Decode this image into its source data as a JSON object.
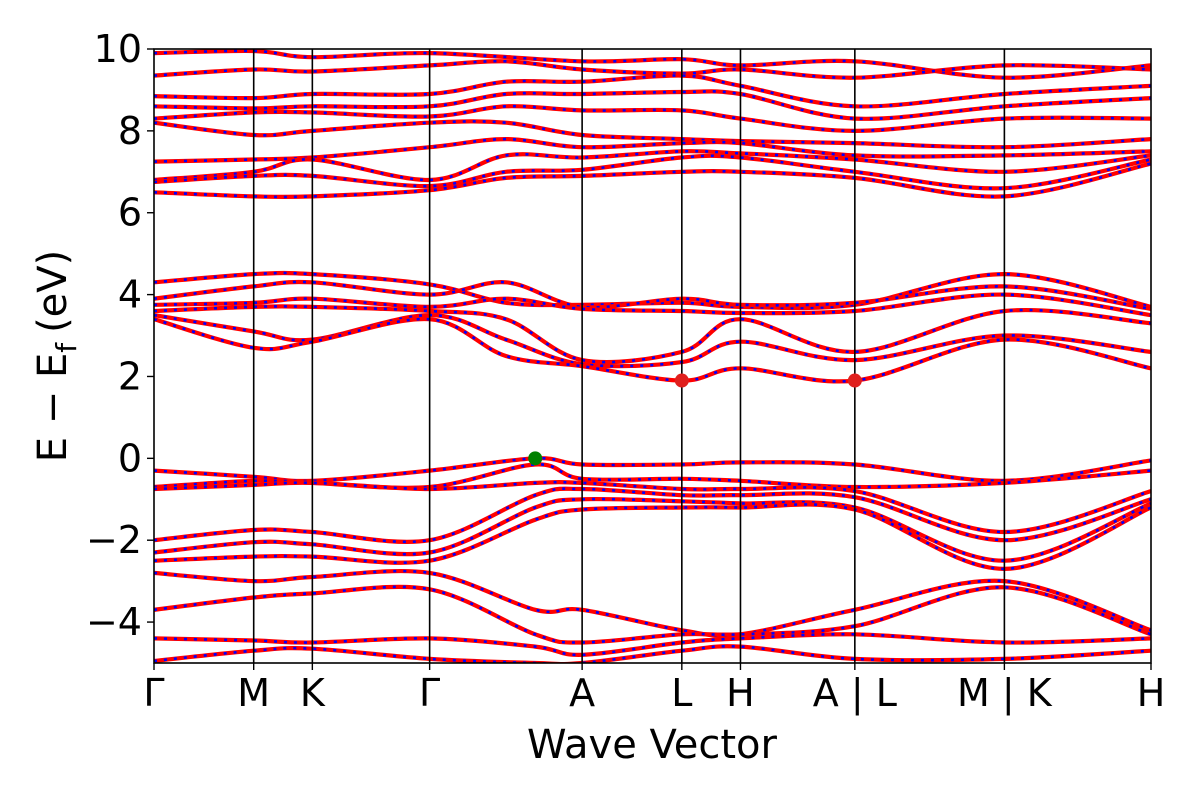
{
  "chart_data": {
    "type": "line",
    "title": "",
    "xlabel": "Wave Vector",
    "ylabel_main": "E − E",
    "ylabel_sub": "f",
    "ylabel_unit": "(eV)",
    "ylim": [
      -5,
      10
    ],
    "yticks": [
      {
        "value": -4,
        "label": "−4"
      },
      {
        "value": -2,
        "label": "−2"
      },
      {
        "value": 0,
        "label": "0"
      },
      {
        "value": 2,
        "label": "2"
      },
      {
        "value": 4,
        "label": "4"
      },
      {
        "value": 6,
        "label": "6"
      },
      {
        "value": 8,
        "label": "8"
      },
      {
        "value": 10,
        "label": "10"
      }
    ],
    "xlim": [
      0,
      17
    ],
    "kpoints": [
      {
        "x": 0,
        "label": "Γ"
      },
      {
        "x": 1.7,
        "label": "M"
      },
      {
        "x": 2.7,
        "label": "K"
      },
      {
        "x": 4.7,
        "label": "Γ"
      },
      {
        "x": 7.3,
        "label": "A"
      },
      {
        "x": 9.0,
        "label": "L"
      },
      {
        "x": 10.0,
        "label": "H"
      },
      {
        "x": 11.95,
        "label": "A | L"
      },
      {
        "x": 14.5,
        "label": "M | K"
      },
      {
        "x": 17.0,
        "label": "H"
      }
    ],
    "series": [
      {
        "style": "red-solid",
        "color": "#ff0000"
      },
      {
        "style": "blue-dotted",
        "color": "#0000ff"
      }
    ],
    "bands": [
      {
        "seg": [
          [
            0,
            9.9
          ],
          [
            1.7,
            9.95
          ],
          [
            2.7,
            9.8
          ],
          [
            4.7,
            9.9
          ],
          [
            7.3,
            9.7
          ],
          [
            9.0,
            9.75
          ],
          [
            10.0,
            9.6
          ],
          [
            11.95,
            9.7
          ],
          [
            14.5,
            9.3
          ],
          [
            17,
            9.6
          ]
        ]
      },
      {
        "seg": [
          [
            0,
            9.35
          ],
          [
            1.7,
            9.5
          ],
          [
            2.7,
            9.45
          ],
          [
            4.7,
            9.6
          ],
          [
            6.0,
            9.7
          ],
          [
            7.3,
            9.5
          ],
          [
            9.0,
            9.4
          ],
          [
            10.0,
            9.5
          ],
          [
            11.95,
            9.3
          ],
          [
            14.5,
            9.6
          ],
          [
            17,
            9.5
          ]
        ]
      },
      {
        "seg": [
          [
            0,
            8.85
          ],
          [
            1.7,
            8.8
          ],
          [
            2.7,
            8.9
          ],
          [
            4.7,
            8.9
          ],
          [
            6.0,
            9.2
          ],
          [
            7.3,
            9.2
          ],
          [
            9.0,
            9.35
          ],
          [
            10.0,
            9.1
          ],
          [
            11.95,
            8.6
          ],
          [
            14.5,
            8.9
          ],
          [
            17,
            9.1
          ]
        ]
      },
      {
        "seg": [
          [
            0,
            8.6
          ],
          [
            1.7,
            8.55
          ],
          [
            2.7,
            8.6
          ],
          [
            4.7,
            8.6
          ],
          [
            6.0,
            8.9
          ],
          [
            7.3,
            8.9
          ],
          [
            9.0,
            8.95
          ],
          [
            10.0,
            8.9
          ],
          [
            11.95,
            8.3
          ],
          [
            14.5,
            8.6
          ],
          [
            17,
            8.8
          ]
        ]
      },
      {
        "seg": [
          [
            0,
            8.3
          ],
          [
            1.7,
            8.45
          ],
          [
            2.7,
            8.45
          ],
          [
            4.7,
            8.35
          ],
          [
            6.0,
            8.6
          ],
          [
            7.3,
            8.5
          ],
          [
            9.0,
            8.5
          ],
          [
            10.0,
            8.3
          ],
          [
            11.95,
            8.0
          ],
          [
            14.5,
            8.3
          ],
          [
            17,
            8.3
          ]
        ]
      },
      {
        "seg": [
          [
            0,
            8.2
          ],
          [
            1.7,
            7.9
          ],
          [
            2.7,
            8.0
          ],
          [
            4.7,
            8.2
          ],
          [
            6.0,
            8.2
          ],
          [
            7.3,
            7.9
          ],
          [
            9.0,
            7.8
          ],
          [
            10.0,
            7.75
          ],
          [
            11.95,
            7.7
          ],
          [
            14.5,
            7.6
          ],
          [
            17,
            7.8
          ]
        ]
      },
      {
        "seg": [
          [
            0,
            7.25
          ],
          [
            1.7,
            7.3
          ],
          [
            2.7,
            7.35
          ],
          [
            4.7,
            7.6
          ],
          [
            6.0,
            7.8
          ],
          [
            7.3,
            7.6
          ],
          [
            9.0,
            7.7
          ],
          [
            10.0,
            7.7
          ],
          [
            11.95,
            7.4
          ],
          [
            14.5,
            7.4
          ],
          [
            17,
            7.5
          ]
        ]
      },
      {
        "seg": [
          [
            0,
            6.8
          ],
          [
            1.7,
            7.0
          ],
          [
            2.7,
            7.3
          ],
          [
            4.7,
            6.8
          ],
          [
            6.0,
            7.4
          ],
          [
            7.3,
            7.35
          ],
          [
            9.0,
            7.5
          ],
          [
            10.0,
            7.45
          ],
          [
            11.95,
            7.3
          ],
          [
            14.5,
            7.0
          ],
          [
            17,
            7.4
          ]
        ]
      },
      {
        "seg": [
          [
            0,
            6.75
          ],
          [
            1.7,
            6.9
          ],
          [
            2.7,
            6.9
          ],
          [
            4.7,
            6.65
          ],
          [
            6.0,
            7.0
          ],
          [
            7.3,
            7.05
          ],
          [
            9.0,
            7.35
          ],
          [
            10.0,
            7.35
          ],
          [
            11.95,
            7.0
          ],
          [
            14.5,
            6.6
          ],
          [
            17,
            7.3
          ]
        ]
      },
      {
        "seg": [
          [
            0,
            6.5
          ],
          [
            1.7,
            6.4
          ],
          [
            2.7,
            6.4
          ],
          [
            4.7,
            6.55
          ],
          [
            6.0,
            6.85
          ],
          [
            7.3,
            6.9
          ],
          [
            9.0,
            7.0
          ],
          [
            10.0,
            7.0
          ],
          [
            11.95,
            6.85
          ],
          [
            14.5,
            6.4
          ],
          [
            17,
            7.2
          ]
        ]
      },
      {
        "seg": [
          [
            0,
            4.3
          ],
          [
            1.7,
            4.5
          ],
          [
            2.7,
            4.5
          ],
          [
            4.7,
            4.25
          ],
          [
            6.0,
            3.8
          ],
          [
            7.3,
            3.75
          ],
          [
            9.0,
            3.8
          ],
          [
            10.0,
            3.7
          ],
          [
            11.95,
            3.75
          ],
          [
            14.5,
            4.5
          ],
          [
            17,
            3.7
          ]
        ]
      },
      {
        "seg": [
          [
            0,
            3.9
          ],
          [
            1.7,
            4.2
          ],
          [
            2.7,
            4.3
          ],
          [
            4.7,
            4.0
          ],
          [
            6.0,
            4.3
          ],
          [
            7.3,
            3.7
          ],
          [
            9.0,
            3.9
          ],
          [
            10.0,
            3.75
          ],
          [
            11.95,
            3.8
          ],
          [
            14.5,
            4.2
          ],
          [
            17,
            3.65
          ]
        ]
      },
      {
        "seg": [
          [
            0,
            3.75
          ],
          [
            1.7,
            3.8
          ],
          [
            2.7,
            3.9
          ],
          [
            4.7,
            3.7
          ],
          [
            6.0,
            3.9
          ],
          [
            7.3,
            3.65
          ],
          [
            9.0,
            3.6
          ],
          [
            10.0,
            3.55
          ],
          [
            11.95,
            3.6
          ],
          [
            14.5,
            4.0
          ],
          [
            17,
            3.5
          ]
        ]
      },
      {
        "seg": [
          [
            0,
            3.6
          ],
          [
            1.7,
            3.7
          ],
          [
            2.7,
            3.7
          ],
          [
            4.7,
            3.6
          ],
          [
            6.0,
            3.4
          ],
          [
            7.3,
            2.4
          ],
          [
            9.0,
            2.6
          ],
          [
            10.0,
            3.4
          ],
          [
            11.95,
            2.6
          ],
          [
            14.5,
            3.6
          ],
          [
            17,
            3.3
          ]
        ]
      },
      {
        "seg": [
          [
            0,
            3.5
          ],
          [
            1.7,
            3.1
          ],
          [
            2.7,
            2.9
          ],
          [
            4.7,
            3.5
          ],
          [
            6.0,
            2.9
          ],
          [
            7.3,
            2.3
          ],
          [
            9.0,
            2.35
          ],
          [
            10.0,
            2.85
          ],
          [
            11.95,
            2.4
          ],
          [
            14.5,
            3.0
          ],
          [
            17,
            2.6
          ]
        ]
      },
      {
        "seg": [
          [
            0,
            3.4
          ],
          [
            1.7,
            2.7
          ],
          [
            2.7,
            2.85
          ],
          [
            4.7,
            3.4
          ],
          [
            6.0,
            2.5
          ],
          [
            7.3,
            2.25
          ],
          [
            9.0,
            1.9
          ],
          [
            10.0,
            2.2
          ],
          [
            11.95,
            1.9
          ],
          [
            14.5,
            2.9
          ],
          [
            17,
            2.2
          ]
        ]
      },
      {
        "seg": [
          [
            0,
            -0.3
          ],
          [
            1.7,
            -0.45
          ],
          [
            2.7,
            -0.55
          ],
          [
            4.7,
            -0.3
          ],
          [
            6.5,
            0.0
          ],
          [
            7.3,
            -0.15
          ],
          [
            9.0,
            -0.15
          ],
          [
            10.0,
            -0.1
          ],
          [
            11.95,
            -0.15
          ],
          [
            14.5,
            -0.55
          ],
          [
            17,
            -0.05
          ]
        ]
      },
      {
        "seg": [
          [
            0,
            -0.7
          ],
          [
            1.7,
            -0.55
          ],
          [
            2.7,
            -0.6
          ],
          [
            4.7,
            -0.7
          ],
          [
            6.5,
            -0.15
          ],
          [
            7.3,
            -0.5
          ],
          [
            9.0,
            -0.5
          ],
          [
            10.0,
            -0.55
          ],
          [
            11.95,
            -0.7
          ],
          [
            14.5,
            -0.6
          ],
          [
            17,
            -0.3
          ]
        ]
      },
      {
        "seg": [
          [
            0,
            -0.75
          ],
          [
            1.7,
            -0.65
          ],
          [
            2.7,
            -0.6
          ],
          [
            4.7,
            -0.75
          ],
          [
            6.5,
            -0.6
          ],
          [
            7.3,
            -0.6
          ],
          [
            9.0,
            -0.75
          ],
          [
            10.0,
            -0.75
          ],
          [
            11.95,
            -0.8
          ],
          [
            14.5,
            -1.8
          ],
          [
            17,
            -0.8
          ]
        ]
      },
      {
        "seg": [
          [
            0,
            -2.0
          ],
          [
            1.7,
            -1.75
          ],
          [
            2.7,
            -1.8
          ],
          [
            4.7,
            -2.0
          ],
          [
            6.5,
            -0.9
          ],
          [
            7.3,
            -0.75
          ],
          [
            9.0,
            -0.9
          ],
          [
            10.0,
            -0.9
          ],
          [
            11.95,
            -0.95
          ],
          [
            14.5,
            -2.0
          ],
          [
            17,
            -1.0
          ]
        ]
      },
      {
        "seg": [
          [
            0,
            -2.3
          ],
          [
            1.7,
            -2.05
          ],
          [
            2.7,
            -2.1
          ],
          [
            4.7,
            -2.3
          ],
          [
            6.5,
            -1.2
          ],
          [
            7.3,
            -1.0
          ],
          [
            9.0,
            -1.05
          ],
          [
            10.0,
            -1.1
          ],
          [
            11.95,
            -1.2
          ],
          [
            14.5,
            -2.5
          ],
          [
            17,
            -1.1
          ]
        ]
      },
      {
        "seg": [
          [
            0,
            -2.5
          ],
          [
            1.7,
            -2.4
          ],
          [
            2.7,
            -2.4
          ],
          [
            4.7,
            -2.5
          ],
          [
            6.5,
            -1.5
          ],
          [
            7.3,
            -1.25
          ],
          [
            9.0,
            -1.2
          ],
          [
            10.0,
            -1.2
          ],
          [
            11.95,
            -1.25
          ],
          [
            14.5,
            -2.7
          ],
          [
            17,
            -1.2
          ]
        ]
      },
      {
        "seg": [
          [
            0,
            -2.8
          ],
          [
            1.7,
            -3.0
          ],
          [
            2.7,
            -2.9
          ],
          [
            4.7,
            -2.8
          ],
          [
            6.5,
            -3.7
          ],
          [
            7.3,
            -3.7
          ],
          [
            9.0,
            -4.2
          ],
          [
            10.0,
            -4.3
          ],
          [
            11.95,
            -3.7
          ],
          [
            14.5,
            -3.0
          ],
          [
            17,
            -4.2
          ]
        ]
      },
      {
        "seg": [
          [
            0,
            -3.7
          ],
          [
            1.7,
            -3.4
          ],
          [
            2.7,
            -3.3
          ],
          [
            4.7,
            -3.2
          ],
          [
            6.5,
            -4.3
          ],
          [
            7.3,
            -4.5
          ],
          [
            9.0,
            -4.3
          ],
          [
            10.0,
            -4.3
          ],
          [
            11.95,
            -4.1
          ],
          [
            14.5,
            -3.15
          ],
          [
            17,
            -4.3
          ]
        ]
      },
      {
        "seg": [
          [
            0,
            -4.4
          ],
          [
            1.7,
            -4.45
          ],
          [
            2.7,
            -4.5
          ],
          [
            4.7,
            -4.4
          ],
          [
            6.5,
            -4.6
          ],
          [
            7.3,
            -4.8
          ],
          [
            9.0,
            -4.5
          ],
          [
            10.0,
            -4.4
          ],
          [
            11.95,
            -4.3
          ],
          [
            14.5,
            -4.5
          ],
          [
            17,
            -4.4
          ]
        ]
      },
      {
        "seg": [
          [
            0,
            -4.95
          ],
          [
            1.7,
            -4.7
          ],
          [
            2.7,
            -4.65
          ],
          [
            4.7,
            -4.9
          ],
          [
            6.5,
            -5.0
          ],
          [
            7.3,
            -5.0
          ],
          [
            9.0,
            -4.7
          ],
          [
            10.0,
            -4.6
          ],
          [
            11.95,
            -4.9
          ],
          [
            14.5,
            -4.9
          ],
          [
            17,
            -4.7
          ]
        ]
      }
    ],
    "markers": [
      {
        "x": 6.5,
        "y": 0.0,
        "color": "#008000"
      },
      {
        "x": 9.0,
        "y": 1.9,
        "color": "#e0201e"
      },
      {
        "x": 11.95,
        "y": 1.9,
        "color": "#e0201e"
      }
    ]
  }
}
